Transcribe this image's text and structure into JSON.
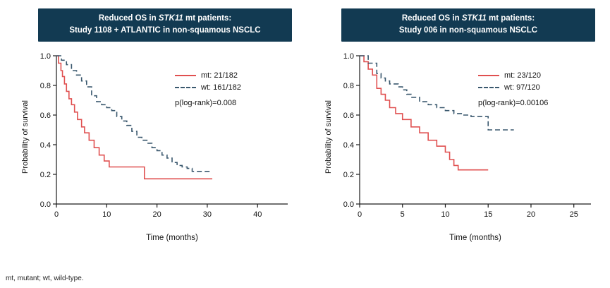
{
  "footnote": "mt, mutant; wt, wild-type.",
  "colors": {
    "mt_line": "#e05050",
    "wt_line": "#3a586e",
    "header_bg": "#123a52",
    "header_text": "#ffffff",
    "axis": "#1a1a1a"
  },
  "chart_data": [
    {
      "type": "line",
      "subtype": "kaplan-meier-step",
      "title": {
        "prefix": "Reduced OS in ",
        "gene": "STK11",
        "suffix": " mt patients:",
        "line2": "Study 1108 + ATLANTIC in non-squamous NSCLC"
      },
      "xlabel": "Time (months)",
      "ylabel": "Probability of survival",
      "xlim": [
        0,
        46
      ],
      "ylim": [
        0,
        1
      ],
      "xticks": [
        0,
        10,
        20,
        30,
        40
      ],
      "yticks": [
        0.0,
        0.2,
        0.4,
        0.6,
        0.8,
        1.0
      ],
      "legend": {
        "mt": "mt: 21/182",
        "wt": "wt: 161/182",
        "pvalue": "p(log-rank)=0.008"
      },
      "series": [
        {
          "name": "mt",
          "style": "solid",
          "points": [
            [
              0,
              1.0
            ],
            [
              0.4,
              0.95
            ],
            [
              0.9,
              0.9
            ],
            [
              1.2,
              0.86
            ],
            [
              1.6,
              0.81
            ],
            [
              2,
              0.76
            ],
            [
              2.5,
              0.71
            ],
            [
              3,
              0.67
            ],
            [
              3.6,
              0.62
            ],
            [
              4.2,
              0.57
            ],
            [
              5,
              0.52
            ],
            [
              5.6,
              0.48
            ],
            [
              6.5,
              0.43
            ],
            [
              7.5,
              0.38
            ],
            [
              8.5,
              0.33
            ],
            [
              9.5,
              0.29
            ],
            [
              10.5,
              0.25
            ],
            [
              17.5,
              0.17
            ],
            [
              31,
              0.17
            ]
          ]
        },
        {
          "name": "wt",
          "style": "dashed",
          "points": [
            [
              0,
              1.0
            ],
            [
              1,
              0.97
            ],
            [
              2,
              0.94
            ],
            [
              3,
              0.9
            ],
            [
              4,
              0.87
            ],
            [
              5,
              0.83
            ],
            [
              6,
              0.79
            ],
            [
              7,
              0.73
            ],
            [
              8,
              0.69
            ],
            [
              9,
              0.67
            ],
            [
              10,
              0.65
            ],
            [
              11,
              0.63
            ],
            [
              12,
              0.59
            ],
            [
              13,
              0.56
            ],
            [
              14,
              0.53
            ],
            [
              15,
              0.49
            ],
            [
              16,
              0.45
            ],
            [
              17,
              0.43
            ],
            [
              18,
              0.41
            ],
            [
              19,
              0.38
            ],
            [
              20,
              0.36
            ],
            [
              21,
              0.33
            ],
            [
              22,
              0.31
            ],
            [
              23,
              0.28
            ],
            [
              24,
              0.26
            ],
            [
              25,
              0.25
            ],
            [
              26,
              0.24
            ],
            [
              27,
              0.22
            ],
            [
              31,
              0.22
            ]
          ]
        }
      ]
    },
    {
      "type": "line",
      "subtype": "kaplan-meier-step",
      "title": {
        "prefix": "Reduced OS in ",
        "gene": "STK11",
        "suffix": " mt patients:",
        "line2": "Study 006 in non-squamous NSCLC"
      },
      "xlabel": "Time (months)",
      "ylabel": "Probability of survival",
      "xlim": [
        0,
        27
      ],
      "ylim": [
        0,
        1
      ],
      "xticks": [
        0,
        5,
        10,
        15,
        20,
        25
      ],
      "yticks": [
        0.0,
        0.2,
        0.4,
        0.6,
        0.8,
        1.0
      ],
      "legend": {
        "mt": "mt: 23/120",
        "wt": "wt: 97/120",
        "pvalue": "p(log-rank)=0.00106"
      },
      "series": [
        {
          "name": "mt",
          "style": "solid",
          "points": [
            [
              0,
              1.0
            ],
            [
              0.5,
              0.96
            ],
            [
              1,
              0.91
            ],
            [
              1.5,
              0.87
            ],
            [
              2,
              0.78
            ],
            [
              2.5,
              0.74
            ],
            [
              3,
              0.7
            ],
            [
              3.5,
              0.65
            ],
            [
              4.2,
              0.61
            ],
            [
              5,
              0.57
            ],
            [
              6,
              0.52
            ],
            [
              7,
              0.48
            ],
            [
              8,
              0.43
            ],
            [
              9,
              0.39
            ],
            [
              10,
              0.35
            ],
            [
              10.5,
              0.3
            ],
            [
              11,
              0.26
            ],
            [
              11.5,
              0.23
            ],
            [
              15,
              0.23
            ]
          ]
        },
        {
          "name": "wt",
          "style": "dashed",
          "points": [
            [
              0,
              1.0
            ],
            [
              1,
              0.95
            ],
            [
              2,
              0.88
            ],
            [
              2.5,
              0.85
            ],
            [
              3,
              0.83
            ],
            [
              3.5,
              0.81
            ],
            [
              4.5,
              0.79
            ],
            [
              5,
              0.77
            ],
            [
              5.5,
              0.74
            ],
            [
              6,
              0.72
            ],
            [
              7,
              0.69
            ],
            [
              8,
              0.67
            ],
            [
              9,
              0.65
            ],
            [
              10,
              0.63
            ],
            [
              11,
              0.61
            ],
            [
              12,
              0.6
            ],
            [
              13,
              0.59
            ],
            [
              15,
              0.5
            ],
            [
              18,
              0.5
            ]
          ]
        }
      ]
    }
  ]
}
